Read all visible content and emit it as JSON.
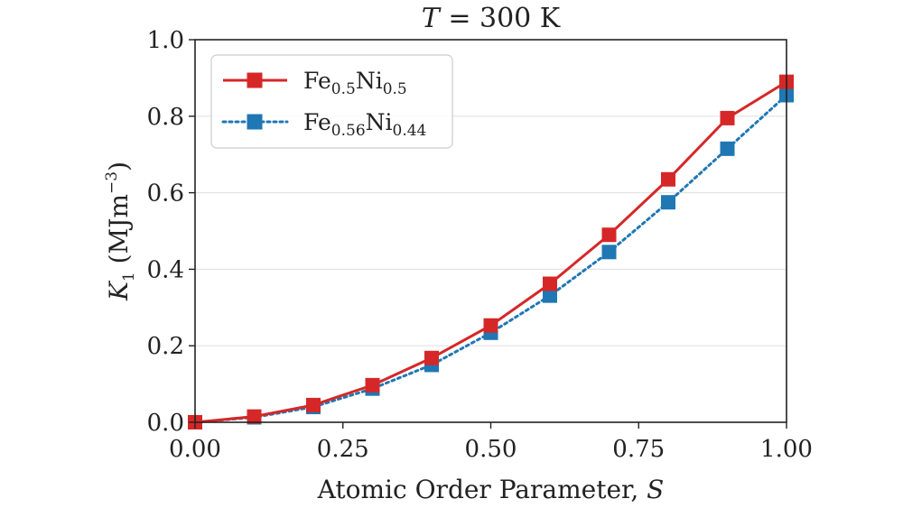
{
  "chart_data": {
    "type": "line",
    "title": {
      "var": "T",
      "rest": " = 300 K"
    },
    "xlabel": {
      "text": "Atomic Order Parameter, ",
      "var": "S"
    },
    "ylabel": {
      "var": "K",
      "sub": "1",
      "unit_open": " (MJm",
      "unit_sup": "−3",
      "unit_close": ")"
    },
    "xlim": [
      0,
      1
    ],
    "ylim": [
      0,
      1
    ],
    "xticks": [
      "0.00",
      "0.25",
      "0.50",
      "0.75",
      "1.00"
    ],
    "yticks": [
      "0.0",
      "0.2",
      "0.4",
      "0.6",
      "0.8",
      "1.0"
    ],
    "grid": "horizontal",
    "legend_position": "upper-left",
    "x": [
      0.0,
      0.1,
      0.2,
      0.3,
      0.4,
      0.5,
      0.6,
      0.7,
      0.8,
      0.9,
      1.0
    ],
    "series": [
      {
        "name_parts": [
          "Fe",
          "0.5",
          "Ni",
          "0.5"
        ],
        "color": "#d62728",
        "line_style": "solid",
        "marker": "square",
        "values": [
          0.0,
          0.015,
          0.045,
          0.097,
          0.168,
          0.253,
          0.362,
          0.49,
          0.635,
          0.795,
          0.89
        ]
      },
      {
        "name_parts": [
          "Fe",
          "0.56",
          "Ni",
          "0.44"
        ],
        "color": "#1f77b4",
        "line_style": "dotted",
        "marker": "square",
        "values": [
          0.0,
          0.013,
          0.04,
          0.088,
          0.15,
          0.234,
          0.331,
          0.445,
          0.575,
          0.715,
          0.855
        ]
      }
    ]
  }
}
